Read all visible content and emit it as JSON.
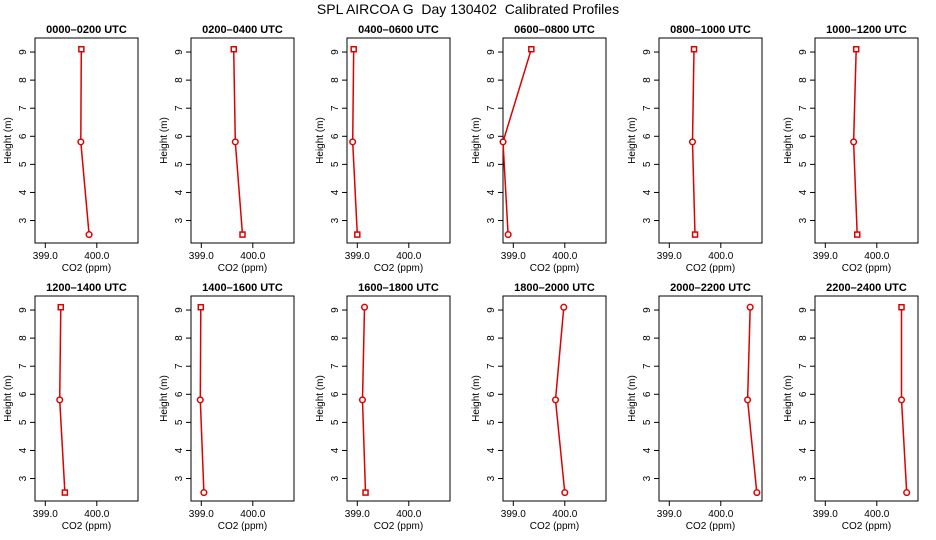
{
  "title": "SPL AIRCOA G  Day 130402  Calibrated Profiles",
  "colors": {
    "line": "#dd0000",
    "marker": "#dd0000",
    "axis": "#000000"
  },
  "chart_data": [
    {
      "type": "line",
      "title": "0000–0200 UTC",
      "xlabel": "CO2 (ppm)",
      "ylabel": "Height (m)",
      "xlim": [
        398.8,
        400.8
      ],
      "ylim": [
        2.2,
        9.5
      ],
      "xticks": [
        399.0,
        400.0
      ],
      "xtick_labels": [
        "399.0",
        "400.0"
      ],
      "yticks": [
        3,
        4,
        5,
        6,
        7,
        8,
        9
      ],
      "ytick_labels": [
        "3",
        "4",
        "5",
        "6",
        "7",
        "8",
        "9"
      ],
      "markers": [
        "square",
        "circle",
        "circle"
      ],
      "series": [
        {
          "x": [
            399.7,
            399.69,
            399.85
          ],
          "y": [
            9.1,
            5.8,
            2.5
          ]
        }
      ]
    },
    {
      "type": "line",
      "title": "0200–0400 UTC",
      "xlabel": "CO2 (ppm)",
      "ylabel": "Height (m)",
      "xlim": [
        398.8,
        400.8
      ],
      "ylim": [
        2.2,
        9.5
      ],
      "xticks": [
        399.0,
        400.0
      ],
      "xtick_labels": [
        "399.0",
        "400.0"
      ],
      "yticks": [
        3,
        4,
        5,
        6,
        7,
        8,
        9
      ],
      "ytick_labels": [
        "3",
        "4",
        "5",
        "6",
        "7",
        "8",
        "9"
      ],
      "markers": [
        "square",
        "circle",
        "square"
      ],
      "series": [
        {
          "x": [
            399.63,
            399.66,
            399.8
          ],
          "y": [
            9.1,
            5.8,
            2.5
          ]
        }
      ]
    },
    {
      "type": "line",
      "title": "0400–0600 UTC",
      "xlabel": "CO2 (ppm)",
      "ylabel": "Height (m)",
      "xlim": [
        398.8,
        400.8
      ],
      "ylim": [
        2.2,
        9.5
      ],
      "xticks": [
        399.0,
        400.0
      ],
      "xtick_labels": [
        "399.0",
        "400.0"
      ],
      "yticks": [
        3,
        4,
        5,
        6,
        7,
        8,
        9
      ],
      "ytick_labels": [
        "3",
        "4",
        "5",
        "6",
        "7",
        "8",
        "9"
      ],
      "markers": [
        "square",
        "circle",
        "square"
      ],
      "series": [
        {
          "x": [
            398.93,
            398.91,
            399.0
          ],
          "y": [
            9.1,
            5.8,
            2.5
          ]
        }
      ]
    },
    {
      "type": "line",
      "title": "0600–0800 UTC",
      "xlabel": "CO2 (ppm)",
      "ylabel": "Height (m)",
      "xlim": [
        398.8,
        400.8
      ],
      "ylim": [
        2.2,
        9.5
      ],
      "xticks": [
        399.0,
        400.0
      ],
      "xtick_labels": [
        "399.0",
        "400.0"
      ],
      "yticks": [
        3,
        4,
        5,
        6,
        7,
        8,
        9
      ],
      "ytick_labels": [
        "3",
        "4",
        "5",
        "6",
        "7",
        "8",
        "9"
      ],
      "markers": [
        "square",
        "circle",
        "circle"
      ],
      "series": [
        {
          "x": [
            399.35,
            398.8,
            398.9
          ],
          "y": [
            9.1,
            5.8,
            2.5
          ]
        }
      ]
    },
    {
      "type": "line",
      "title": "0800–1000 UTC",
      "xlabel": "CO2 (ppm)",
      "ylabel": "Height (m)",
      "xlim": [
        398.8,
        400.8
      ],
      "ylim": [
        2.2,
        9.5
      ],
      "xticks": [
        399.0,
        400.0
      ],
      "xtick_labels": [
        "399.0",
        "400.0"
      ],
      "yticks": [
        3,
        4,
        5,
        6,
        7,
        8,
        9
      ],
      "ytick_labels": [
        "3",
        "4",
        "5",
        "6",
        "7",
        "8",
        "9"
      ],
      "markers": [
        "square",
        "circle",
        "square"
      ],
      "series": [
        {
          "x": [
            399.48,
            399.45,
            399.5
          ],
          "y": [
            9.1,
            5.8,
            2.5
          ]
        }
      ]
    },
    {
      "type": "line",
      "title": "1000–1200 UTC",
      "xlabel": "CO2 (ppm)",
      "ylabel": "Height (m)",
      "xlim": [
        398.8,
        400.8
      ],
      "ylim": [
        2.2,
        9.5
      ],
      "xticks": [
        399.0,
        400.0
      ],
      "xtick_labels": [
        "399.0",
        "400.0"
      ],
      "yticks": [
        3,
        4,
        5,
        6,
        7,
        8,
        9
      ],
      "ytick_labels": [
        "3",
        "4",
        "5",
        "6",
        "7",
        "8",
        "9"
      ],
      "markers": [
        "square",
        "circle",
        "square"
      ],
      "series": [
        {
          "x": [
            399.6,
            399.55,
            399.62
          ],
          "y": [
            9.1,
            5.8,
            2.5
          ]
        }
      ]
    },
    {
      "type": "line",
      "title": "1200–1400 UTC",
      "xlabel": "CO2 (ppm)",
      "ylabel": "Height (m)",
      "xlim": [
        398.8,
        400.8
      ],
      "ylim": [
        2.2,
        9.5
      ],
      "xticks": [
        399.0,
        400.0
      ],
      "xtick_labels": [
        "399.0",
        "400.0"
      ],
      "yticks": [
        3,
        4,
        5,
        6,
        7,
        8,
        9
      ],
      "ytick_labels": [
        "3",
        "4",
        "5",
        "6",
        "7",
        "8",
        "9"
      ],
      "markers": [
        "square",
        "circle",
        "square"
      ],
      "series": [
        {
          "x": [
            399.3,
            399.28,
            399.38
          ],
          "y": [
            9.1,
            5.8,
            2.5
          ]
        }
      ]
    },
    {
      "type": "line",
      "title": "1400–1600 UTC",
      "xlabel": "CO2 (ppm)",
      "ylabel": "Height (m)",
      "xlim": [
        398.8,
        400.8
      ],
      "ylim": [
        2.2,
        9.5
      ],
      "xticks": [
        399.0,
        400.0
      ],
      "xtick_labels": [
        "399.0",
        "400.0"
      ],
      "yticks": [
        3,
        4,
        5,
        6,
        7,
        8,
        9
      ],
      "ytick_labels": [
        "3",
        "4",
        "5",
        "6",
        "7",
        "8",
        "9"
      ],
      "markers": [
        "square",
        "circle",
        "circle"
      ],
      "series": [
        {
          "x": [
            398.99,
            398.98,
            399.05
          ],
          "y": [
            9.1,
            5.8,
            2.5
          ]
        }
      ]
    },
    {
      "type": "line",
      "title": "1600–1800 UTC",
      "xlabel": "CO2 (ppm)",
      "ylabel": "Height (m)",
      "xlim": [
        398.8,
        400.8
      ],
      "ylim": [
        2.2,
        9.5
      ],
      "xticks": [
        399.0,
        400.0
      ],
      "xtick_labels": [
        "399.0",
        "400.0"
      ],
      "yticks": [
        3,
        4,
        5,
        6,
        7,
        8,
        9
      ],
      "ytick_labels": [
        "3",
        "4",
        "5",
        "6",
        "7",
        "8",
        "9"
      ],
      "markers": [
        "circle",
        "circle",
        "square"
      ],
      "series": [
        {
          "x": [
            399.14,
            399.1,
            399.16
          ],
          "y": [
            9.1,
            5.8,
            2.5
          ]
        }
      ]
    },
    {
      "type": "line",
      "title": "1800–2000 UTC",
      "xlabel": "CO2 (ppm)",
      "ylabel": "Height (m)",
      "xlim": [
        398.8,
        400.8
      ],
      "ylim": [
        2.2,
        9.5
      ],
      "xticks": [
        399.0,
        400.0
      ],
      "xtick_labels": [
        "399.0",
        "400.0"
      ],
      "yticks": [
        3,
        4,
        5,
        6,
        7,
        8,
        9
      ],
      "ytick_labels": [
        "3",
        "4",
        "5",
        "6",
        "7",
        "8",
        "9"
      ],
      "markers": [
        "circle",
        "circle",
        "circle"
      ],
      "series": [
        {
          "x": [
            399.98,
            399.82,
            400.0
          ],
          "y": [
            9.1,
            5.8,
            2.5
          ]
        }
      ]
    },
    {
      "type": "line",
      "title": "2000–2200 UTC",
      "xlabel": "CO2 (ppm)",
      "ylabel": "Height (m)",
      "xlim": [
        398.8,
        400.8
      ],
      "ylim": [
        2.2,
        9.5
      ],
      "xticks": [
        399.0,
        400.0
      ],
      "xtick_labels": [
        "399.0",
        "400.0"
      ],
      "yticks": [
        3,
        4,
        5,
        6,
        7,
        8,
        9
      ],
      "ytick_labels": [
        "3",
        "4",
        "5",
        "6",
        "7",
        "8",
        "9"
      ],
      "markers": [
        "circle",
        "circle",
        "circle"
      ],
      "series": [
        {
          "x": [
            400.57,
            400.52,
            400.7
          ],
          "y": [
            9.1,
            5.8,
            2.5
          ]
        }
      ]
    },
    {
      "type": "line",
      "title": "2200–2400 UTC",
      "xlabel": "CO2 (ppm)",
      "ylabel": "Height (m)",
      "xlim": [
        398.8,
        400.8
      ],
      "ylim": [
        2.2,
        9.5
      ],
      "xticks": [
        399.0,
        400.0
      ],
      "xtick_labels": [
        "399.0",
        "400.0"
      ],
      "yticks": [
        3,
        4,
        5,
        6,
        7,
        8,
        9
      ],
      "ytick_labels": [
        "3",
        "4",
        "5",
        "6",
        "7",
        "8",
        "9"
      ],
      "markers": [
        "square",
        "circle",
        "circle"
      ],
      "series": [
        {
          "x": [
            400.48,
            400.48,
            400.58
          ],
          "y": [
            9.1,
            5.8,
            2.5
          ]
        }
      ]
    }
  ]
}
